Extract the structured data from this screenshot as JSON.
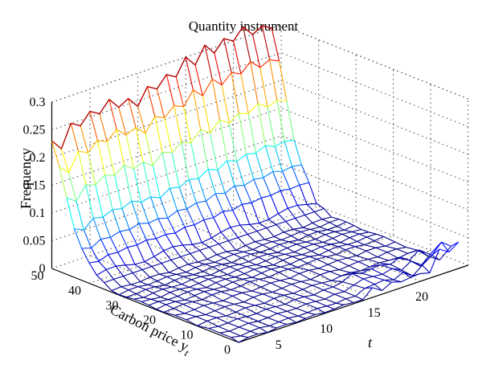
{
  "chart_data": {
    "type": "surface3d",
    "title": "Quantity instrument",
    "zlabel": "Frequency",
    "ylabel": "Carbon price y",
    "ylabel_subscript": "t",
    "xlabel": "t",
    "x_ticks": [
      "5",
      "10",
      "15",
      "20"
    ],
    "y_ticks": [
      "0",
      "10",
      "20",
      "30",
      "40",
      "50"
    ],
    "z_ticks": [
      "0",
      "0.05",
      "0.1",
      "0.15",
      "0.2",
      "0.25",
      "0.3"
    ],
    "x_range": [
      1,
      25
    ],
    "y_range": [
      0,
      50
    ],
    "z_range": [
      0,
      0.3
    ],
    "grid": true,
    "colormap": "jet",
    "ridge_values": [
      0.23,
      0.21,
      0.25,
      0.24,
      0.26,
      0.25,
      0.27,
      0.25,
      0.26,
      0.24,
      0.27,
      0.26,
      0.28,
      0.27,
      0.3,
      0.28,
      0.31,
      0.29,
      0.31,
      0.3,
      0.32,
      0.3,
      0.31,
      0.3
    ]
  }
}
